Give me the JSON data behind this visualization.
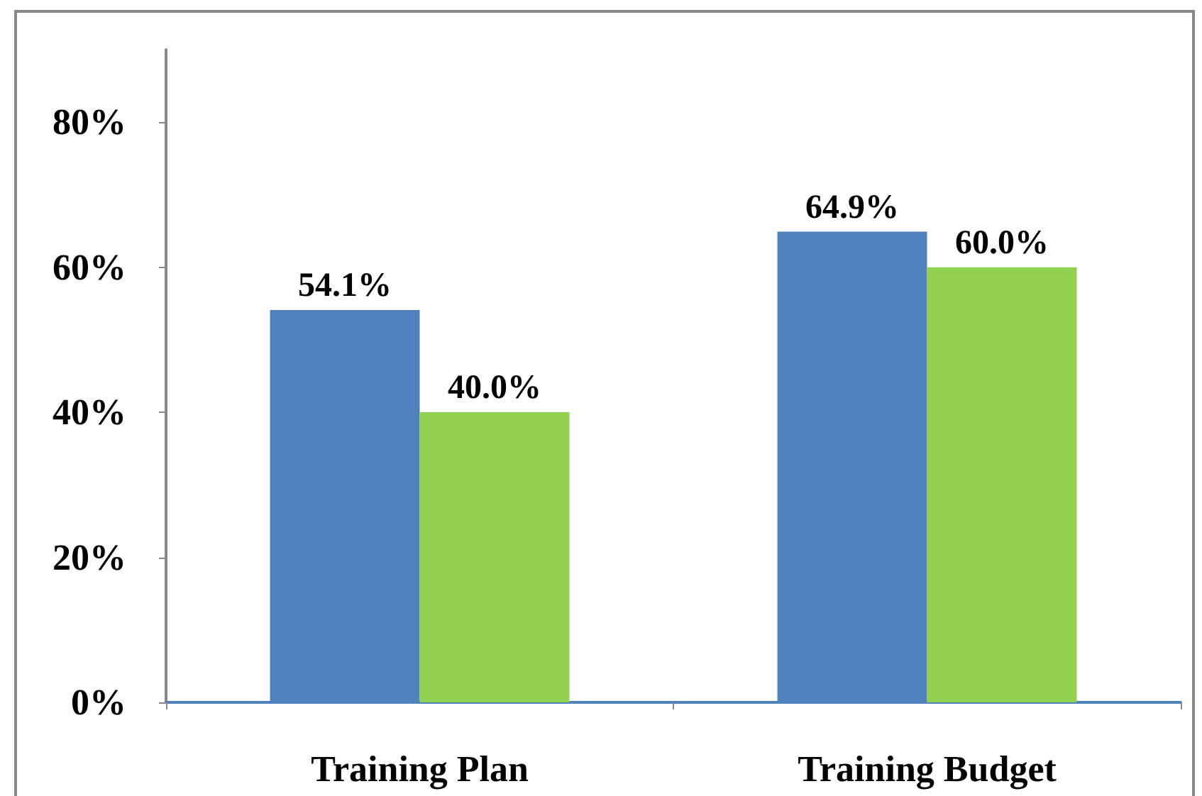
{
  "chart_data": {
    "type": "bar",
    "categories": [
      "Training Plan",
      "Training Budget"
    ],
    "series": [
      {
        "color": "#4f81bd",
        "values": [
          54.1,
          64.9
        ],
        "value_labels": [
          "54.1%",
          "64.9%"
        ]
      },
      {
        "color": "#92d050",
        "values": [
          40.0,
          60.0
        ],
        "value_labels": [
          "40.0%",
          "60.0%"
        ]
      }
    ],
    "ylim": [
      0,
      90
    ],
    "yticks": [
      {
        "value": 0,
        "label": "0%"
      },
      {
        "value": 20,
        "label": "20%"
      },
      {
        "value": 40,
        "label": "40%"
      },
      {
        "value": 60,
        "label": "60%"
      },
      {
        "value": 80,
        "label": "80%"
      }
    ],
    "grid": false
  }
}
